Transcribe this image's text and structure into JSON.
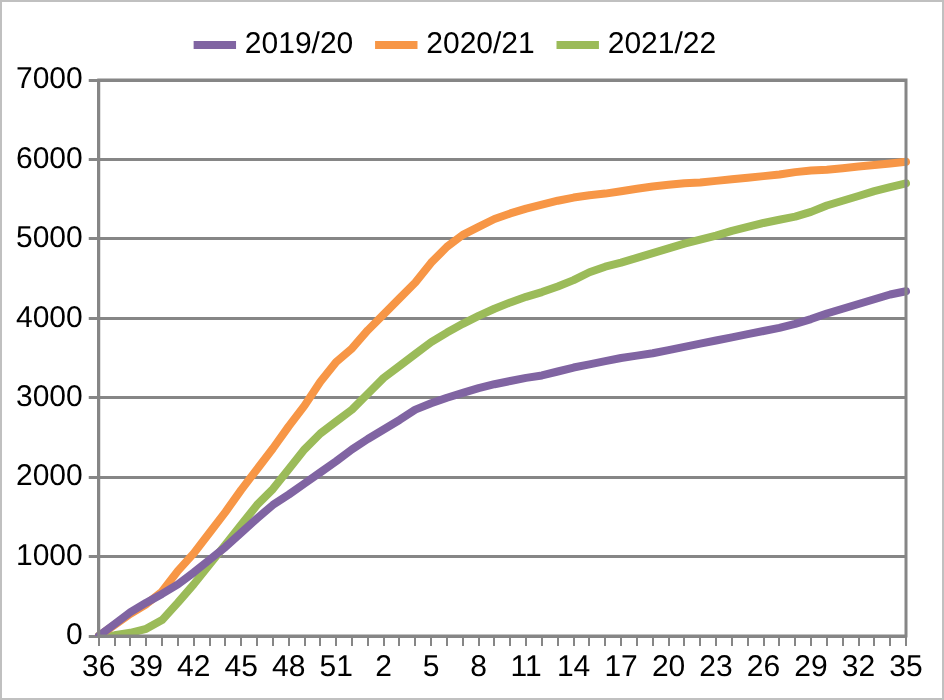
{
  "chart_data": {
    "type": "line",
    "categories": [
      "36",
      null,
      null,
      "39",
      null,
      null,
      "42",
      null,
      null,
      "45",
      null,
      null,
      "48",
      null,
      null,
      "51",
      null,
      null,
      "2",
      null,
      null,
      "5",
      null,
      null,
      "8",
      null,
      null,
      "11",
      null,
      null,
      "14",
      null,
      null,
      "17",
      null,
      null,
      "20",
      null,
      null,
      "23",
      null,
      null,
      "26",
      null,
      null,
      "29",
      null,
      null,
      "32",
      null,
      null,
      "35"
    ],
    "series": [
      {
        "name": "2019/20",
        "color": "#8064a2",
        "values": [
          0,
          150,
          300,
          420,
          530,
          650,
          800,
          960,
          1120,
          1300,
          1480,
          1650,
          1780,
          1920,
          2060,
          2200,
          2350,
          2480,
          2600,
          2720,
          2850,
          2930,
          3000,
          3060,
          3120,
          3170,
          3210,
          3250,
          3280,
          3330,
          3380,
          3420,
          3460,
          3500,
          3530,
          3560,
          3600,
          3640,
          3680,
          3720,
          3760,
          3800,
          3840,
          3880,
          3930,
          3990,
          4060,
          4120,
          4180,
          4240,
          4300,
          4340
        ]
      },
      {
        "name": "2020/21",
        "color": "#f79646",
        "values": [
          0,
          140,
          280,
          400,
          560,
          820,
          1040,
          1300,
          1560,
          1840,
          2100,
          2360,
          2640,
          2900,
          3200,
          3450,
          3620,
          3850,
          4050,
          4250,
          4450,
          4700,
          4900,
          5050,
          5150,
          5250,
          5320,
          5380,
          5430,
          5480,
          5520,
          5550,
          5570,
          5600,
          5630,
          5660,
          5680,
          5700,
          5710,
          5730,
          5750,
          5770,
          5790,
          5810,
          5840,
          5860,
          5870,
          5890,
          5910,
          5930,
          5950,
          5970
        ]
      },
      {
        "name": "2021/22",
        "color": "#9bbb59",
        "values": [
          0,
          10,
          40,
          90,
          200,
          420,
          650,
          900,
          1150,
          1400,
          1650,
          1850,
          2100,
          2350,
          2550,
          2700,
          2850,
          3050,
          3250,
          3400,
          3550,
          3700,
          3820,
          3930,
          4030,
          4120,
          4200,
          4270,
          4330,
          4400,
          4480,
          4580,
          4650,
          4700,
          4760,
          4820,
          4880,
          4940,
          4990,
          5040,
          5100,
          5150,
          5200,
          5240,
          5280,
          5340,
          5420,
          5480,
          5540,
          5600,
          5650,
          5700
        ]
      }
    ],
    "ylim": [
      0,
      7000
    ],
    "yticks": [
      0,
      1000,
      2000,
      3000,
      4000,
      5000,
      6000,
      7000
    ],
    "grid": "y",
    "legend": "top",
    "marker": "none",
    "line_style": "solid"
  }
}
